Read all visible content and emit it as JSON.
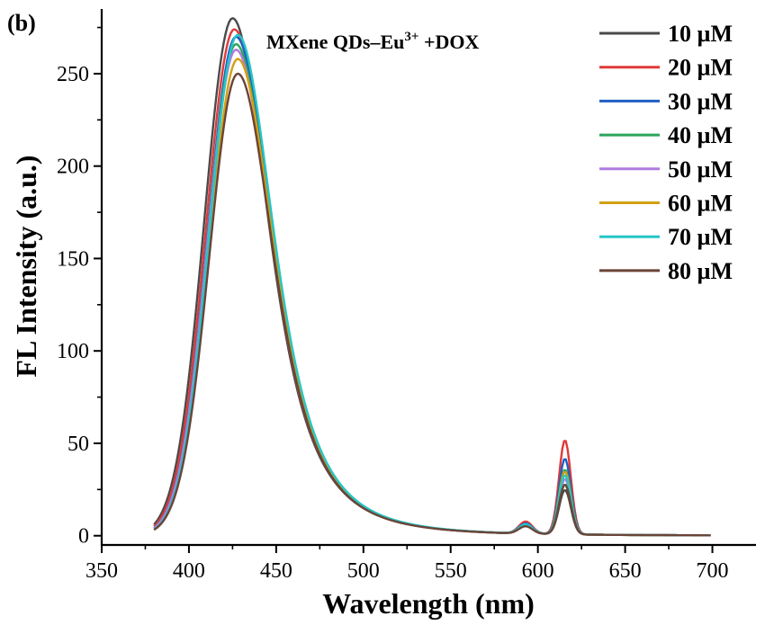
{
  "chart_data": {
    "type": "line",
    "panel_label": "(b)",
    "annotation": {
      "main": "MXene QDs–Eu",
      "superscript": "3+",
      "suffix": " +DOX"
    },
    "xlabel": "Wavelength (nm)",
    "ylabel": "FL Intensity (a.u.)",
    "xlim": [
      350,
      725
    ],
    "ylim": [
      -5,
      285
    ],
    "xticks": [
      350,
      400,
      450,
      500,
      550,
      600,
      650,
      700
    ],
    "yticks": [
      0,
      50,
      100,
      150,
      200,
      250
    ],
    "legend_position": "top-right",
    "series": [
      {
        "name": "10 µM",
        "color": "#4a4a4a",
        "peak": 280,
        "peak_x": 425,
        "peak2": 24,
        "hump": 4
      },
      {
        "name": "20 µM",
        "color": "#e03a3a",
        "peak": 274,
        "peak_x": 426,
        "peak2": 51,
        "hump": 6.5
      },
      {
        "name": "30 µM",
        "color": "#1f5fc4",
        "peak": 270,
        "peak_x": 427,
        "peak2": 41,
        "hump": 5.5
      },
      {
        "name": "40 µM",
        "color": "#2ca45a",
        "peak": 266,
        "peak_x": 427,
        "peak2": 35,
        "hump": 5
      },
      {
        "name": "50 µM",
        "color": "#b07be0",
        "peak": 263,
        "peak_x": 427,
        "peak2": 30,
        "hump": 4.5
      },
      {
        "name": "60 µM",
        "color": "#d4a010",
        "peak": 258,
        "peak_x": 428,
        "peak2": 34,
        "hump": 4.5
      },
      {
        "name": "70 µM",
        "color": "#27c6c6",
        "peak": 271,
        "peak_x": 428,
        "peak2": 32,
        "hump": 5
      },
      {
        "name": "80 µM",
        "color": "#6b4438",
        "peak": 250,
        "peak_x": 428,
        "peak2": 27,
        "hump": 4
      }
    ]
  }
}
